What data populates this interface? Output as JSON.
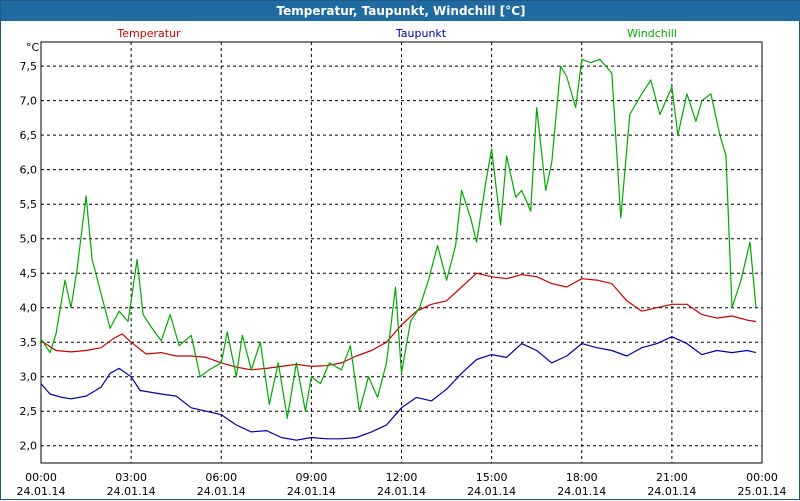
{
  "window": {
    "title": "Temperatur, Taupunkt, Windchill [°C]"
  },
  "chart_data": {
    "type": "line",
    "title": "Temperatur, Taupunkt, Windchill [°C]",
    "ylabel": "°C",
    "ylim": [
      1.75,
      7.85
    ],
    "yticks": [
      "2,0",
      "2,5",
      "3,0",
      "3,5",
      "4,0",
      "4,5",
      "5,0",
      "5,5",
      "6,0",
      "6,5",
      "7,0",
      "7,5"
    ],
    "xlim": [
      0,
      24
    ],
    "x_unit": "hours since 24.01.14 00:00",
    "xticks": [
      {
        "time": "00:00",
        "date": "24.01.14"
      },
      {
        "time": "03:00",
        "date": "24.01.14"
      },
      {
        "time": "06:00",
        "date": "24.01.14"
      },
      {
        "time": "09:00",
        "date": "24.01.14"
      },
      {
        "time": "12:00",
        "date": "24.01.14"
      },
      {
        "time": "15:00",
        "date": "24.01.14"
      },
      {
        "time": "18:00",
        "date": "24.01.14"
      },
      {
        "time": "21:00",
        "date": "24.01.14"
      },
      {
        "time": "00:00",
        "date": "25.01.14"
      }
    ],
    "grid": true,
    "series": [
      {
        "name": "Temperatur",
        "color": "#cc0000",
        "points": [
          [
            0,
            3.52
          ],
          [
            0.5,
            3.38
          ],
          [
            1,
            3.36
          ],
          [
            1.5,
            3.38
          ],
          [
            2,
            3.42
          ],
          [
            2.4,
            3.55
          ],
          [
            2.7,
            3.62
          ],
          [
            3,
            3.5
          ],
          [
            3.5,
            3.33
          ],
          [
            4,
            3.35
          ],
          [
            4.5,
            3.3
          ],
          [
            5,
            3.3
          ],
          [
            5.5,
            3.28
          ],
          [
            6,
            3.2
          ],
          [
            6.5,
            3.14
          ],
          [
            7,
            3.1
          ],
          [
            7.5,
            3.12
          ],
          [
            8,
            3.15
          ],
          [
            8.5,
            3.18
          ],
          [
            9,
            3.15
          ],
          [
            9.5,
            3.16
          ],
          [
            10,
            3.2
          ],
          [
            10.5,
            3.3
          ],
          [
            11,
            3.38
          ],
          [
            11.5,
            3.5
          ],
          [
            12,
            3.75
          ],
          [
            12.5,
            3.95
          ],
          [
            13,
            4.05
          ],
          [
            13.5,
            4.1
          ],
          [
            14,
            4.3
          ],
          [
            14.5,
            4.5
          ],
          [
            15,
            4.45
          ],
          [
            15.5,
            4.42
          ],
          [
            16,
            4.48
          ],
          [
            16.5,
            4.45
          ],
          [
            17,
            4.35
          ],
          [
            17.5,
            4.3
          ],
          [
            18,
            4.42
          ],
          [
            18.5,
            4.4
          ],
          [
            19,
            4.35
          ],
          [
            19.5,
            4.1
          ],
          [
            20,
            3.95
          ],
          [
            20.5,
            4.0
          ],
          [
            21,
            4.05
          ],
          [
            21.5,
            4.05
          ],
          [
            22,
            3.9
          ],
          [
            22.5,
            3.85
          ],
          [
            23,
            3.88
          ],
          [
            23.5,
            3.82
          ],
          [
            23.8,
            3.8
          ]
        ]
      },
      {
        "name": "Taupunkt",
        "color": "#0000aa",
        "points": [
          [
            0,
            2.9
          ],
          [
            0.3,
            2.75
          ],
          [
            0.7,
            2.7
          ],
          [
            1,
            2.68
          ],
          [
            1.5,
            2.72
          ],
          [
            2,
            2.85
          ],
          [
            2.3,
            3.05
          ],
          [
            2.6,
            3.12
          ],
          [
            3,
            3.0
          ],
          [
            3.3,
            2.8
          ],
          [
            4,
            2.75
          ],
          [
            4.5,
            2.72
          ],
          [
            5,
            2.55
          ],
          [
            5.5,
            2.5
          ],
          [
            6,
            2.45
          ],
          [
            6.5,
            2.3
          ],
          [
            7,
            2.2
          ],
          [
            7.5,
            2.22
          ],
          [
            8,
            2.12
          ],
          [
            8.5,
            2.08
          ],
          [
            9,
            2.12
          ],
          [
            9.5,
            2.1
          ],
          [
            10,
            2.1
          ],
          [
            10.5,
            2.12
          ],
          [
            11,
            2.2
          ],
          [
            11.5,
            2.3
          ],
          [
            12,
            2.55
          ],
          [
            12.5,
            2.7
          ],
          [
            13,
            2.65
          ],
          [
            13.5,
            2.82
          ],
          [
            14,
            3.05
          ],
          [
            14.5,
            3.25
          ],
          [
            15,
            3.32
          ],
          [
            15.5,
            3.28
          ],
          [
            16,
            3.48
          ],
          [
            16.5,
            3.38
          ],
          [
            17,
            3.2
          ],
          [
            17.5,
            3.3
          ],
          [
            18,
            3.48
          ],
          [
            18.5,
            3.42
          ],
          [
            19,
            3.38
          ],
          [
            19.5,
            3.3
          ],
          [
            20,
            3.42
          ],
          [
            20.5,
            3.48
          ],
          [
            21,
            3.58
          ],
          [
            21.5,
            3.48
          ],
          [
            22,
            3.32
          ],
          [
            22.5,
            3.38
          ],
          [
            23,
            3.35
          ],
          [
            23.5,
            3.38
          ],
          [
            23.8,
            3.35
          ]
        ]
      },
      {
        "name": "Windchill",
        "color": "#00aa00",
        "points": [
          [
            0,
            3.55
          ],
          [
            0.3,
            3.35
          ],
          [
            0.5,
            3.62
          ],
          [
            0.8,
            4.4
          ],
          [
            1,
            4.0
          ],
          [
            1.2,
            4.55
          ],
          [
            1.5,
            5.62
          ],
          [
            1.7,
            4.7
          ],
          [
            2,
            4.2
          ],
          [
            2.3,
            3.7
          ],
          [
            2.6,
            3.95
          ],
          [
            2.9,
            3.8
          ],
          [
            3.2,
            4.7
          ],
          [
            3.4,
            3.9
          ],
          [
            3.7,
            3.7
          ],
          [
            4,
            3.52
          ],
          [
            4.3,
            3.9
          ],
          [
            4.6,
            3.45
          ],
          [
            5,
            3.6
          ],
          [
            5.3,
            3.0
          ],
          [
            5.6,
            3.1
          ],
          [
            6,
            3.2
          ],
          [
            6.2,
            3.65
          ],
          [
            6.5,
            3.0
          ],
          [
            6.7,
            3.6
          ],
          [
            7,
            3.1
          ],
          [
            7.3,
            3.5
          ],
          [
            7.6,
            2.6
          ],
          [
            7.9,
            3.2
          ],
          [
            8.2,
            2.4
          ],
          [
            8.5,
            3.2
          ],
          [
            8.8,
            2.5
          ],
          [
            9,
            3.0
          ],
          [
            9.3,
            2.9
          ],
          [
            9.6,
            3.2
          ],
          [
            10,
            3.1
          ],
          [
            10.3,
            3.45
          ],
          [
            10.6,
            2.5
          ],
          [
            10.9,
            3.0
          ],
          [
            11.2,
            2.7
          ],
          [
            11.5,
            3.2
          ],
          [
            11.8,
            4.3
          ],
          [
            12,
            3.05
          ],
          [
            12.3,
            3.8
          ],
          [
            12.6,
            4.0
          ],
          [
            12.9,
            4.4
          ],
          [
            13.2,
            4.9
          ],
          [
            13.5,
            4.4
          ],
          [
            13.8,
            4.9
          ],
          [
            14,
            5.7
          ],
          [
            14.3,
            5.3
          ],
          [
            14.5,
            4.95
          ],
          [
            14.8,
            5.8
          ],
          [
            15,
            6.3
          ],
          [
            15.3,
            5.2
          ],
          [
            15.5,
            6.2
          ],
          [
            15.8,
            5.6
          ],
          [
            16,
            5.7
          ],
          [
            16.3,
            5.4
          ],
          [
            16.5,
            6.9
          ],
          [
            16.8,
            5.7
          ],
          [
            17,
            6.1
          ],
          [
            17.3,
            7.5
          ],
          [
            17.5,
            7.35
          ],
          [
            17.8,
            6.9
          ],
          [
            18,
            7.6
          ],
          [
            18.3,
            7.55
          ],
          [
            18.6,
            7.6
          ],
          [
            19,
            7.4
          ],
          [
            19.3,
            5.3
          ],
          [
            19.6,
            6.8
          ],
          [
            20,
            7.1
          ],
          [
            20.3,
            7.3
          ],
          [
            20.6,
            6.8
          ],
          [
            21,
            7.2
          ],
          [
            21.2,
            6.5
          ],
          [
            21.5,
            7.1
          ],
          [
            21.8,
            6.7
          ],
          [
            22,
            7.0
          ],
          [
            22.3,
            7.1
          ],
          [
            22.6,
            6.5
          ],
          [
            22.8,
            6.2
          ],
          [
            23,
            4.0
          ],
          [
            23.3,
            4.4
          ],
          [
            23.6,
            4.95
          ],
          [
            23.8,
            4.0
          ]
        ]
      }
    ]
  }
}
